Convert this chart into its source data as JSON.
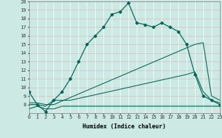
{
  "xlabel": "Humidex (Indice chaleur)",
  "xlim": [
    0,
    23
  ],
  "ylim": [
    7,
    20
  ],
  "xticks": [
    0,
    1,
    2,
    3,
    4,
    5,
    6,
    7,
    8,
    9,
    10,
    11,
    12,
    13,
    14,
    15,
    16,
    17,
    18,
    19,
    20,
    21,
    22,
    23
  ],
  "yticks": [
    8,
    9,
    10,
    11,
    12,
    13,
    14,
    15,
    16,
    17,
    18,
    19,
    20
  ],
  "bg_color": "#cce9e4",
  "grid_color_h": "#d9b8b8",
  "grid_color_v": "#ffffff",
  "line_color": "#006655",
  "line1_x": [
    0,
    1,
    2,
    3,
    4,
    5,
    6,
    7,
    8,
    9,
    10,
    11,
    12,
    13,
    14,
    15,
    16,
    17,
    18,
    19,
    20,
    21,
    22,
    23
  ],
  "line1_y": [
    9.5,
    8.0,
    7.2,
    8.5,
    9.5,
    11.0,
    13.0,
    15.0,
    16.0,
    17.0,
    18.5,
    18.8,
    19.8,
    17.5,
    17.3,
    17.0,
    17.5,
    17.0,
    16.5,
    15.0,
    11.5,
    9.0,
    8.5,
    8.0
  ],
  "line2_x": [
    0,
    1,
    2,
    3,
    4,
    5,
    6,
    7,
    8,
    9,
    10,
    11,
    12,
    13,
    14,
    15,
    16,
    17,
    18,
    19,
    20,
    21,
    22,
    23
  ],
  "line2_y": [
    7.5,
    7.8,
    7.5,
    7.5,
    7.8,
    7.8,
    7.8,
    7.8,
    7.8,
    7.8,
    7.8,
    7.8,
    7.8,
    7.8,
    7.8,
    7.8,
    7.8,
    7.8,
    7.8,
    7.8,
    7.8,
    7.8,
    7.8,
    7.8
  ],
  "line3_x": [
    0,
    1,
    2,
    3,
    4,
    5,
    19,
    20,
    21,
    22,
    23
  ],
  "line3_y": [
    8.0,
    8.0,
    7.8,
    8.5,
    8.5,
    8.5,
    11.5,
    11.8,
    9.5,
    8.5,
    8.2
  ],
  "line4_x": [
    0,
    1,
    2,
    3,
    20,
    21,
    22,
    23
  ],
  "line4_y": [
    8.2,
    8.2,
    8.0,
    8.0,
    15.0,
    15.2,
    9.0,
    8.5
  ]
}
